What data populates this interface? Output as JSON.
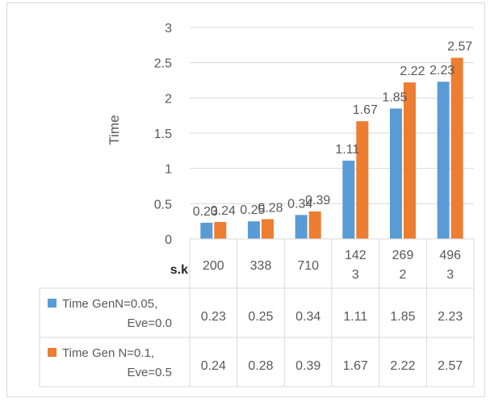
{
  "chart_data": {
    "type": "bar",
    "categories": [
      "200",
      "338",
      "710",
      "1423",
      "2692",
      "4963"
    ],
    "category_labels": [
      [
        "200"
      ],
      [
        "338"
      ],
      [
        "710"
      ],
      [
        "142",
        "3"
      ],
      [
        "269",
        "2"
      ],
      [
        "496",
        "3"
      ]
    ],
    "ylabel": "Time",
    "ylim": [
      0,
      3
    ],
    "yticks": [
      "0",
      "0.5",
      "1",
      "1.5",
      "2",
      "2.5",
      "3"
    ],
    "grid": true,
    "series": [
      {
        "name": "Time GenN=0.05, Eve=0.0",
        "name_lines": [
          "Time GenN=0.05,",
          "Eve=0.0"
        ],
        "color": "#5b9bd5",
        "values": [
          0.23,
          0.25,
          0.34,
          1.11,
          1.85,
          2.23
        ],
        "labels": [
          "0.23",
          "0.25",
          "0.34",
          "1.11",
          "1.85",
          "2.23"
        ]
      },
      {
        "name": "Time Gen N=0.1, Eve=0.5",
        "name_lines": [
          "Time Gen N=0.1,",
          "Eve=0.5"
        ],
        "color": "#ed7d31",
        "values": [
          0.24,
          0.28,
          0.39,
          1.67,
          2.22,
          2.57
        ],
        "labels": [
          "0.24",
          "0.28",
          "0.39",
          "1.67",
          "2.22",
          "2.57"
        ]
      }
    ],
    "table": {
      "header_label": "s.k",
      "legend_position": "bottom-table"
    }
  }
}
